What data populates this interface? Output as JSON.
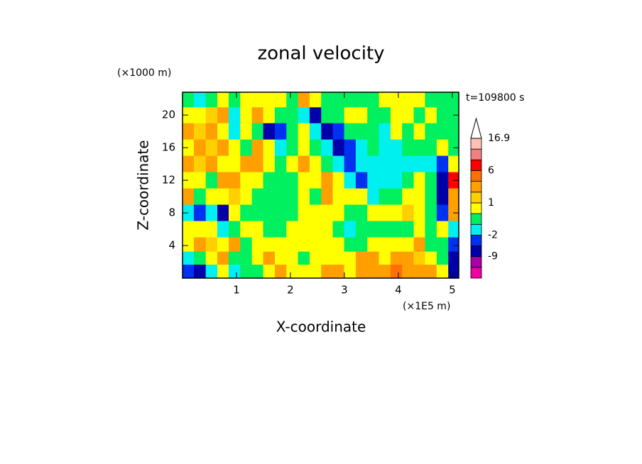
{
  "chart_data": {
    "type": "contour",
    "title": "zonal velocity",
    "xlabel": "X-coordinate",
    "ylabel": "Z-coordinate",
    "x_unit": "(×1E5 m)",
    "y_unit": "(×1000 m)",
    "annotation": "t=109800 s",
    "xlim": [
      0,
      5.12
    ],
    "ylim": [
      0,
      22.8
    ],
    "xticks": [
      1,
      2,
      3,
      4,
      5
    ],
    "yticks": [
      4,
      8,
      12,
      16,
      20
    ],
    "x": [
      0.1,
      0.32,
      0.54,
      0.75,
      0.96,
      1.18,
      1.39,
      1.6,
      1.82,
      2.03,
      2.25,
      2.46,
      2.68,
      2.89,
      3.1,
      3.32,
      3.53,
      3.75,
      3.96,
      4.18,
      4.39,
      4.6,
      4.82,
      5.03
    ],
    "y": [
      21.9,
      20,
      18,
      16,
      14,
      12,
      10,
      8,
      6,
      4,
      2.5,
      0.8
    ],
    "z": [
      [
        -0.5,
        -1.5,
        -0.5,
        0.5,
        -0.5,
        0.5,
        0.5,
        0.5,
        0.5,
        -0.5,
        3,
        0.5,
        -0.5,
        -0.5,
        -0.5,
        -0.5,
        -0.5,
        0.5,
        0.5,
        0.5,
        0.5,
        -0.5,
        -0.5,
        -0.5
      ],
      [
        0.5,
        0.5,
        1.5,
        3,
        -1.5,
        0.5,
        3,
        0.5,
        -0.5,
        -0.5,
        -1.5,
        -7,
        -0.5,
        -0.5,
        0.5,
        0.5,
        -0.5,
        -0.5,
        0.5,
        0.5,
        -0.5,
        0.5,
        -0.5,
        -0.5
      ],
      [
        3,
        1.5,
        3,
        0.5,
        -1.5,
        0.5,
        -0.5,
        -7,
        -4,
        -0.5,
        0.5,
        -1.5,
        -7,
        -4,
        -0.5,
        -0.5,
        -0.5,
        -1.5,
        0.5,
        -0.5,
        0.5,
        -0.5,
        -0.5,
        -0.5
      ],
      [
        0.5,
        3,
        1.5,
        3,
        0.5,
        -0.5,
        3,
        0.5,
        -1.5,
        -0.5,
        0.5,
        -0.5,
        -1.5,
        -7,
        -4,
        -1.5,
        -0.5,
        -1.5,
        -1.5,
        -0.5,
        -0.5,
        -0.5,
        0.5,
        -0.5
      ],
      [
        3,
        1.5,
        3,
        0.5,
        0.5,
        3,
        3,
        0.5,
        -0.5,
        0.5,
        3,
        0.5,
        -0.5,
        -1.5,
        -4,
        -1.5,
        -1.5,
        -1.5,
        -1.5,
        -1.5,
        -1.5,
        -1.5,
        -4,
        0.5
      ],
      [
        0.5,
        0.5,
        -0.5,
        3,
        3,
        0.5,
        0.5,
        -0.5,
        -0.5,
        -0.5,
        0.5,
        0.5,
        3,
        0.5,
        -1.5,
        -4,
        -1.5,
        -1.5,
        -1.5,
        -0.5,
        0.5,
        -0.5,
        -7,
        8
      ],
      [
        3,
        -0.5,
        0.5,
        0.5,
        1.5,
        0.5,
        -0.5,
        -0.5,
        -0.5,
        -0.5,
        0.5,
        -0.5,
        3,
        0.5,
        0.5,
        0.5,
        -1.5,
        -0.5,
        -0.5,
        0.5,
        0.5,
        -0.5,
        -7,
        3
      ],
      [
        -1.5,
        -4,
        -1.5,
        -7,
        0.5,
        -0.5,
        -0.5,
        -0.5,
        -0.5,
        -0.5,
        0.5,
        0.5,
        0.5,
        0.5,
        -0.5,
        -0.5,
        0.5,
        0.5,
        0.5,
        1.5,
        0.5,
        -0.5,
        -4,
        3
      ],
      [
        0.5,
        0.5,
        0.5,
        -1.5,
        -0.5,
        0.5,
        0.5,
        -0.5,
        -0.5,
        0.5,
        0.5,
        0.5,
        0.5,
        -0.5,
        -1.5,
        -0.5,
        -0.5,
        -0.5,
        -0.5,
        -0.5,
        0.5,
        -0.5,
        0.5,
        -1.5
      ],
      [
        0.5,
        3,
        1.5,
        0.5,
        3,
        -0.5,
        0.5,
        0.5,
        0.5,
        0.5,
        0.5,
        0.5,
        0.5,
        0.5,
        -0.5,
        -0.5,
        0.5,
        0.5,
        0.5,
        0.5,
        3,
        -0.5,
        -0.5,
        -4
      ],
      [
        -1.5,
        -0.5,
        0.5,
        3,
        -0.5,
        -0.5,
        0.5,
        3,
        0.5,
        0.5,
        -0.5,
        0.5,
        0.5,
        0.5,
        0.5,
        3,
        3,
        0.5,
        3,
        3,
        1.5,
        0.5,
        -0.5,
        -7
      ],
      [
        -4,
        -7,
        -1.5,
        0.5,
        -1.5,
        -0.5,
        -0.5,
        0.5,
        3,
        0.5,
        0.5,
        0.5,
        3,
        3,
        0.5,
        3,
        3,
        3,
        5,
        3,
        3,
        3,
        0.5,
        -7
      ]
    ],
    "colorbar": {
      "levels": [
        -16,
        -12,
        -9,
        -6,
        -2,
        -1,
        0,
        1,
        2,
        4,
        6,
        10,
        13,
        16.9
      ],
      "colors": [
        "#f000a0",
        "#a800a8",
        "#0000a8",
        "#0030f0",
        "#00f0f0",
        "#00f060",
        "#ffff00",
        "#ffd000",
        "#ffa000",
        "#ff7000",
        "#ff0000",
        "#f08080",
        "#ffc0b8"
      ],
      "extend_color": "#ffffff",
      "ticks": [
        16.9,
        6,
        1,
        -2,
        -9
      ]
    }
  }
}
